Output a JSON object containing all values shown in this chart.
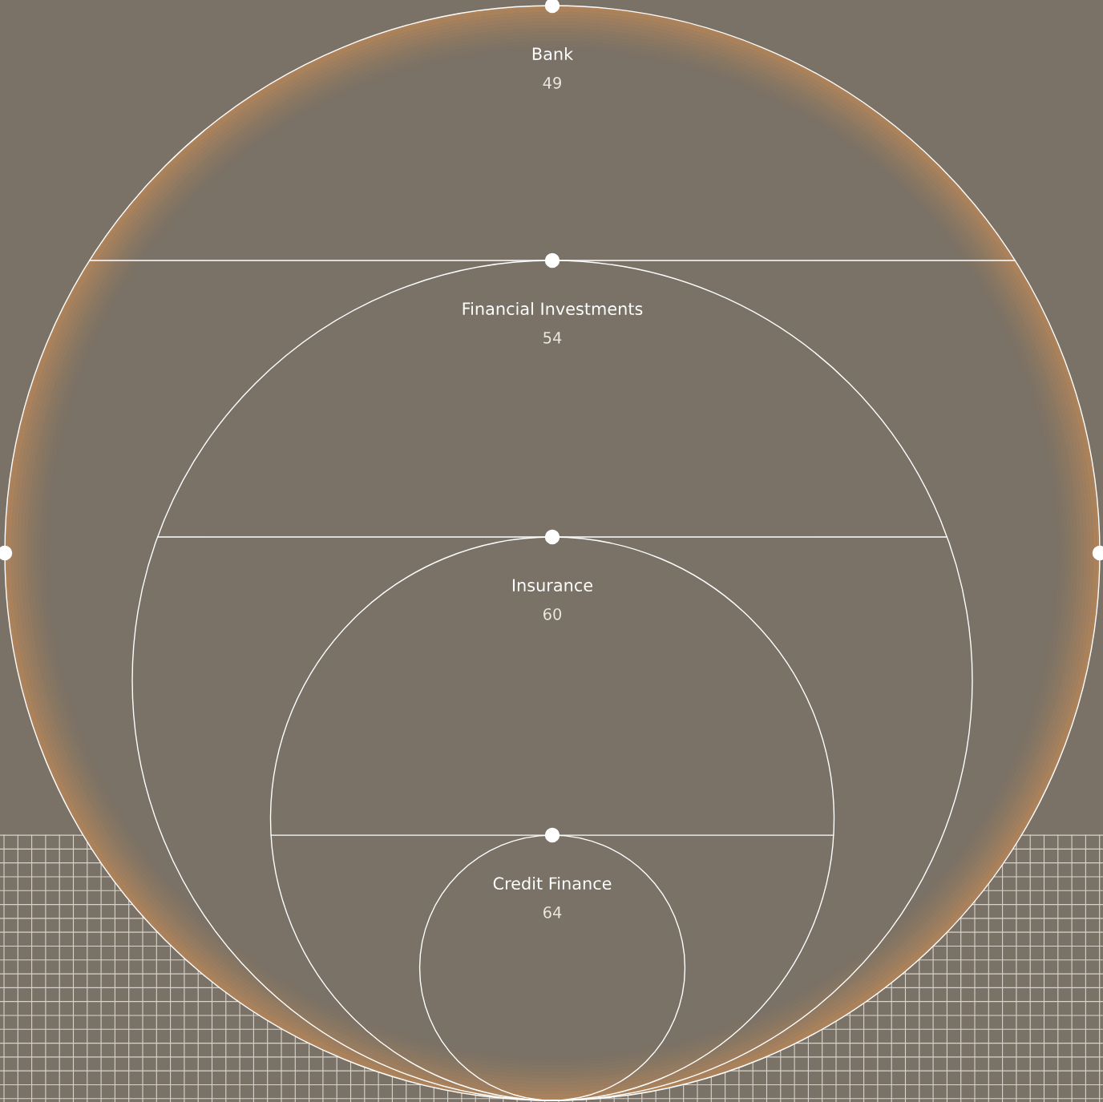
{
  "chart_data": {
    "type": "other",
    "categories": [
      "Bank",
      "Financial Investments",
      "Insurance",
      "Credit Finance"
    ],
    "values": [
      49,
      54,
      60,
      64
    ],
    "data_labels": true
  }
}
